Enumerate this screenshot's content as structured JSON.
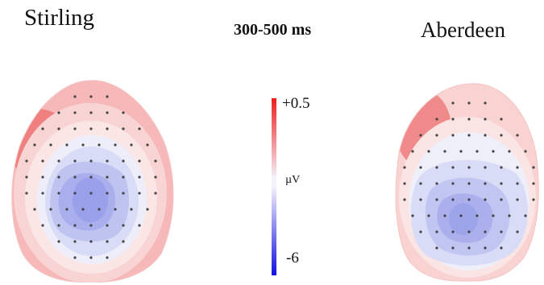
{
  "maps": {
    "left": {
      "title": "Stirling"
    },
    "right": {
      "title": "Aberdeen"
    },
    "time_window": "300-500 ms"
  },
  "color_scale": {
    "max_label": "+0.5",
    "unit_label": "µV",
    "min_label": "-6",
    "max_color": "#ee1f1f",
    "mid_color": "#f4f2fb",
    "min_color": "#1111e0"
  }
}
